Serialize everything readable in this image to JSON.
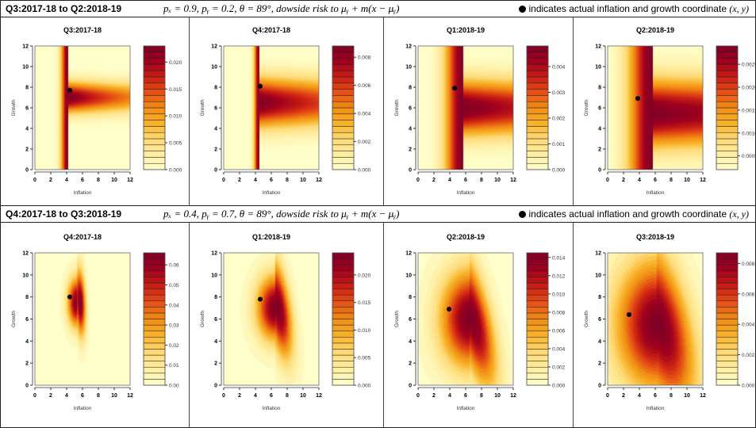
{
  "rows": [
    {
      "label": "Q3:2017-18 to Q2:2018-19",
      "params": "pₓ = 0.9,  pᵧ = 0.2,  θ = 89°,  dowside risk to μᵧ + m(x − μᵧ)",
      "note": "indicates actual inflation and growth coordinate",
      "note_xy": "(x, y)"
    },
    {
      "label": "Q4:2017-18 to Q3:2018-19",
      "params": "pₓ = 0.4,  pᵧ = 0.7,  θ = 89°, dowside risk to μᵧ + m(x − μᵧ)",
      "note": "indicates actual inflation and growth coordinate",
      "note_xy": "(x, y)"
    }
  ],
  "colors": {
    "low": "#ffffcc",
    "high": "#800026"
  },
  "chart_data": [
    {
      "type": "heatmap",
      "title": "Q3:2017-18",
      "xlabel": "Inflation",
      "ylabel": "Growth",
      "xlim": [
        0,
        12
      ],
      "ylim": [
        0,
        12
      ],
      "xticks": [
        0,
        2,
        4,
        6,
        8,
        10,
        12
      ],
      "yticks": [
        0,
        2,
        4,
        6,
        8,
        10,
        12
      ],
      "point": [
        4.4,
        7.7
      ],
      "zlim": [
        0,
        0.023
      ],
      "legend_ticks": [
        "0.000",
        "0.005",
        "0.010",
        "0.015",
        "0.020"
      ]
    },
    {
      "type": "heatmap",
      "title": "Q4:2017-18",
      "xlabel": "Inflation",
      "ylabel": "Growth",
      "xlim": [
        0,
        12
      ],
      "ylim": [
        0,
        12
      ],
      "xticks": [
        0,
        2,
        4,
        6,
        8,
        10,
        12
      ],
      "yticks": [
        0,
        2,
        4,
        6,
        8,
        10,
        12
      ],
      "point": [
        4.6,
        8.1
      ],
      "zlim": [
        0,
        0.0088
      ],
      "legend_ticks": [
        "0.000",
        "0.002",
        "0.004",
        "0.006",
        "0.008"
      ]
    },
    {
      "type": "heatmap",
      "title": "Q1:2018-19",
      "xlabel": "Inflation",
      "ylabel": "Growth",
      "xlim": [
        0,
        12
      ],
      "ylim": [
        0,
        12
      ],
      "xticks": [
        0,
        2,
        4,
        6,
        8,
        10,
        12
      ],
      "yticks": [
        0,
        2,
        4,
        6,
        8,
        10,
        12
      ],
      "point": [
        4.6,
        7.9
      ],
      "zlim": [
        0,
        0.0048
      ],
      "legend_ticks": [
        "0.000",
        "0.001",
        "0.002",
        "0.003",
        "0.004"
      ]
    },
    {
      "type": "heatmap",
      "title": "Q2:2018-19",
      "xlabel": "Inflation",
      "ylabel": "Growth",
      "xlim": [
        0,
        12
      ],
      "ylim": [
        0,
        12
      ],
      "xticks": [
        0,
        2,
        4,
        6,
        8,
        10,
        12
      ],
      "yticks": [
        0,
        2,
        4,
        6,
        8,
        10,
        12
      ],
      "point": [
        3.8,
        6.9
      ],
      "zlim": [
        0.0002,
        0.0029
      ],
      "legend_ticks": [
        "0.0005",
        "0.0010",
        "0.0015",
        "0.0020",
        "0.0025"
      ]
    },
    {
      "type": "heatmap",
      "title": "Q4:2017-18",
      "xlabel": "Inflation",
      "ylabel": "Growth",
      "xlim": [
        0,
        12
      ],
      "ylim": [
        0,
        12
      ],
      "xticks": [
        0,
        2,
        4,
        6,
        8,
        10,
        12
      ],
      "yticks": [
        0,
        2,
        4,
        6,
        8,
        10,
        12
      ],
      "point": [
        4.4,
        8.0
      ],
      "zlim": [
        0,
        0.066
      ],
      "legend_ticks": [
        "0.00",
        "0.01",
        "0.02",
        "0.03",
        "0.04",
        "0.05",
        "0.06"
      ]
    },
    {
      "type": "heatmap",
      "title": "Q1:2018-19",
      "xlabel": "Inflation",
      "ylabel": "Growth",
      "xlim": [
        0,
        12
      ],
      "ylim": [
        0,
        12
      ],
      "xticks": [
        0,
        2,
        4,
        6,
        8,
        10,
        12
      ],
      "yticks": [
        0,
        2,
        4,
        6,
        8,
        10,
        12
      ],
      "point": [
        4.6,
        7.8
      ],
      "zlim": [
        0,
        0.024
      ],
      "legend_ticks": [
        "0.000",
        "0.005",
        "0.010",
        "0.015",
        "0.020"
      ]
    },
    {
      "type": "heatmap",
      "title": "Q2:2018-19",
      "xlabel": "Inflation",
      "ylabel": "Growth",
      "xlim": [
        0,
        12
      ],
      "ylim": [
        0,
        12
      ],
      "xticks": [
        0,
        2,
        4,
        6,
        8,
        10,
        12
      ],
      "yticks": [
        0,
        2,
        4,
        6,
        8,
        10,
        12
      ],
      "point": [
        3.9,
        6.9
      ],
      "zlim": [
        0,
        0.0145
      ],
      "legend_ticks": [
        "0.000",
        "0.002",
        "0.004",
        "0.006",
        "0.008",
        "0.010",
        "0.012",
        "0.014"
      ]
    },
    {
      "type": "heatmap",
      "title": "Q3:2018-19",
      "xlabel": "Inflation",
      "ylabel": "Growth",
      "xlim": [
        0,
        12
      ],
      "ylim": [
        0,
        12
      ],
      "xticks": [
        0,
        2,
        4,
        6,
        8,
        10,
        12
      ],
      "yticks": [
        0,
        2,
        4,
        6,
        8,
        10,
        12
      ],
      "point": [
        2.7,
        6.4
      ],
      "zlim": [
        0,
        0.0087
      ],
      "legend_ticks": [
        "0.000",
        "0.002",
        "0.004",
        "0.006",
        "0.008"
      ]
    }
  ]
}
